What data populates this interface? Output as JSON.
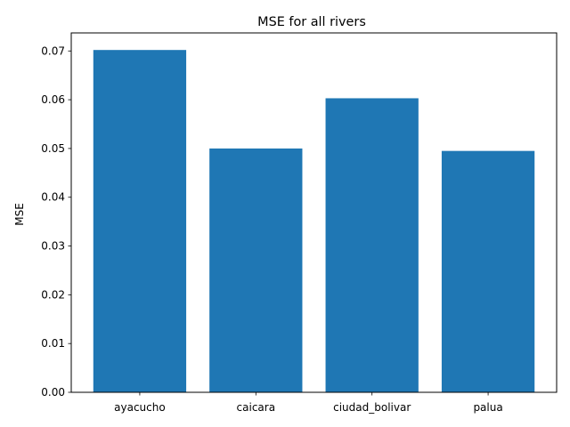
{
  "chart_data": {
    "type": "bar",
    "title": "MSE for all rivers",
    "xlabel": "",
    "ylabel": "MSE",
    "categories": [
      "ayacucho",
      "caicara",
      "ciudad_bolivar",
      "palua"
    ],
    "values": [
      0.0702,
      0.05,
      0.0603,
      0.0495
    ],
    "ylim": [
      0,
      0.0737
    ],
    "yticks": [
      0.0,
      0.01,
      0.02,
      0.03,
      0.04,
      0.05,
      0.06,
      0.07
    ],
    "ytick_labels": [
      "0.00",
      "0.01",
      "0.02",
      "0.03",
      "0.04",
      "0.05",
      "0.06",
      "0.07"
    ],
    "bar_color": "#1f77b4",
    "grid": false,
    "legend": "none"
  }
}
